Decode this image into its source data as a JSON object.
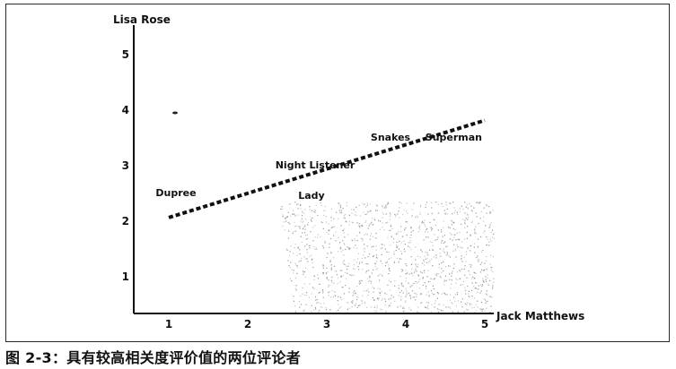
{
  "caption": "图 2-3：具有较高相关度评价值的两位评论者",
  "chart_data": {
    "type": "scatter",
    "title": "",
    "xlabel": "Jack Matthews",
    "ylabel": "Lisa Rose",
    "xlim": [
      0.6,
      5.0
    ],
    "ylim": [
      0.2,
      5.4
    ],
    "xticks": [
      "1",
      "2",
      "3",
      "4",
      "5"
    ],
    "yticks": [
      "1",
      "2",
      "3",
      "4",
      "5"
    ],
    "grid": false,
    "legend": "none",
    "points": [
      {
        "label": "Dupree",
        "x": 1.0,
        "y": 2.5
      },
      {
        "label": "Night Listener",
        "x": 3.0,
        "y": 3.0
      },
      {
        "label": "Lady",
        "x": 3.0,
        "y": 2.5
      },
      {
        "label": "Snakes",
        "x": 4.0,
        "y": 3.5
      },
      {
        "label": "Superman",
        "x": 5.0,
        "y": 3.5
      }
    ],
    "trendline": {
      "style": "dashed",
      "x": [
        1.0,
        5.0
      ],
      "y": [
        2.05,
        3.8
      ]
    },
    "colors": {
      "ink": "#111111",
      "line": "#111111"
    }
  }
}
